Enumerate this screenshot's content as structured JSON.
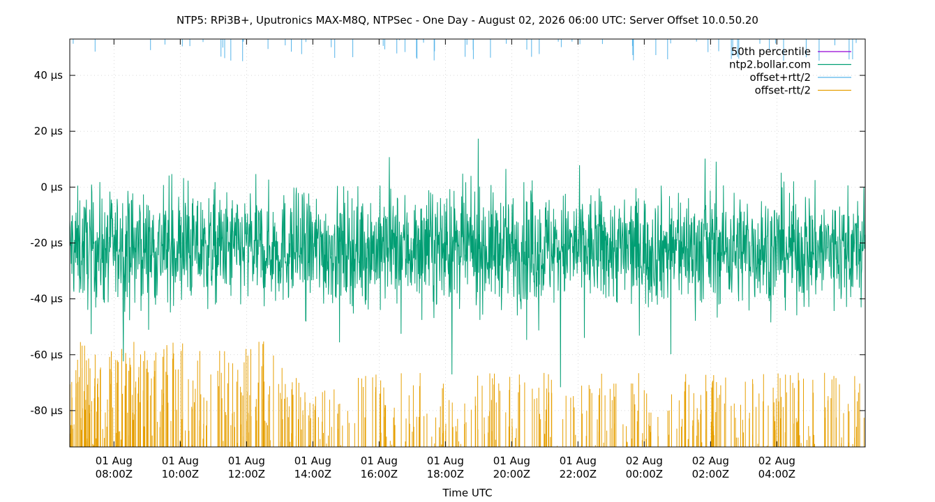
{
  "chart_data": {
    "type": "line",
    "title": "NTP5: RPi3B+, Uputronics MAX-M8Q, NTPSec - One Day - August 02, 2026 06:00 UTC: Server Offset 10.0.50.20",
    "xlabel": "Time UTC",
    "ylabel": "",
    "y_unit": "µs",
    "x_range": [
      "2026-08-01T06:40Z",
      "2026-08-02T06:40Z"
    ],
    "ylim": [
      -93,
      53
    ],
    "grid": true,
    "legend_placement": "top-right",
    "x_ticks": [
      {
        "date": "01 Aug",
        "time": "08:00Z"
      },
      {
        "date": "01 Aug",
        "time": "10:00Z"
      },
      {
        "date": "01 Aug",
        "time": "12:00Z"
      },
      {
        "date": "01 Aug",
        "time": "14:00Z"
      },
      {
        "date": "01 Aug",
        "time": "16:00Z"
      },
      {
        "date": "01 Aug",
        "time": "18:00Z"
      },
      {
        "date": "01 Aug",
        "time": "20:00Z"
      },
      {
        "date": "01 Aug",
        "time": "22:00Z"
      },
      {
        "date": "02 Aug",
        "time": "00:00Z"
      },
      {
        "date": "02 Aug",
        "time": "02:00Z"
      },
      {
        "date": "02 Aug",
        "time": "04:00Z"
      }
    ],
    "y_ticks": [
      {
        "value": 40,
        "label": "40 µs"
      },
      {
        "value": 20,
        "label": "20 µs"
      },
      {
        "value": 0,
        "label": "0 µs"
      },
      {
        "value": -20,
        "label": "-20 µs"
      },
      {
        "value": -40,
        "label": "-40 µs"
      },
      {
        "value": -60,
        "label": "-60 µs"
      },
      {
        "value": -80,
        "label": "-80 µs"
      }
    ],
    "series": [
      {
        "name": "50th percentile",
        "color": "#9400d3",
        "values": []
      },
      {
        "name": "ntp2.bollar.com",
        "color": "#009e73",
        "typical_range": [
          -75,
          10
        ],
        "median": -22
      },
      {
        "name": "offset+rtt/2",
        "color": "#56b4e9",
        "typical_range": [
          45,
          53
        ]
      },
      {
        "name": "offset-rtt/2",
        "color": "#e69f00",
        "typical_range": [
          -93,
          -60
        ]
      }
    ]
  }
}
